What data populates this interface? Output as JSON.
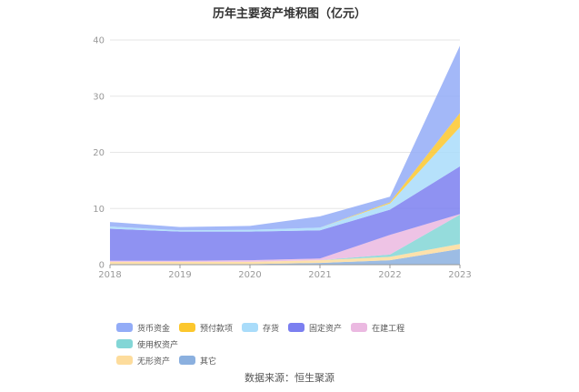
{
  "chart_data": {
    "type": "area",
    "stacked": true,
    "title": "历年主要资产堆积图（亿元）",
    "x": [
      "2018",
      "2019",
      "2020",
      "2021",
      "2022",
      "2023"
    ],
    "ylim": [
      0,
      40
    ],
    "yticks": [
      0,
      10,
      20,
      30,
      40
    ],
    "grid": true,
    "legend_position": "bottom",
    "series": [
      {
        "name": "货币资金",
        "color": "#93acf7",
        "values": [
          0.8,
          0.6,
          0.7,
          2.0,
          1.0,
          12.0
        ]
      },
      {
        "name": "预付款项",
        "color": "#fcc72d",
        "values": [
          0.0,
          0.0,
          0.0,
          0.0,
          0.2,
          2.5
        ]
      },
      {
        "name": "存货",
        "color": "#a9dcfa",
        "values": [
          0.4,
          0.2,
          0.3,
          0.5,
          1.1,
          7.0
        ]
      },
      {
        "name": "固定资产",
        "color": "#7b7ff0",
        "values": [
          5.7,
          5.2,
          5.1,
          5.0,
          4.5,
          8.5
        ]
      },
      {
        "name": "在建工程",
        "color": "#ebb9e1",
        "values": [
          0.2,
          0.2,
          0.3,
          0.3,
          3.5,
          0.1
        ]
      },
      {
        "name": "使用权资产",
        "color": "#83d6d6",
        "values": [
          0.0,
          0.0,
          0.0,
          0.0,
          0.4,
          5.2
        ]
      },
      {
        "name": "无形资产",
        "color": "#fddc9c",
        "values": [
          0.4,
          0.4,
          0.4,
          0.5,
          0.6,
          0.9
        ]
      },
      {
        "name": "其它",
        "color": "#8bb0df",
        "values": [
          0.1,
          0.1,
          0.1,
          0.3,
          0.8,
          2.8
        ]
      }
    ]
  },
  "source_text": "数据来源：恒生聚源"
}
